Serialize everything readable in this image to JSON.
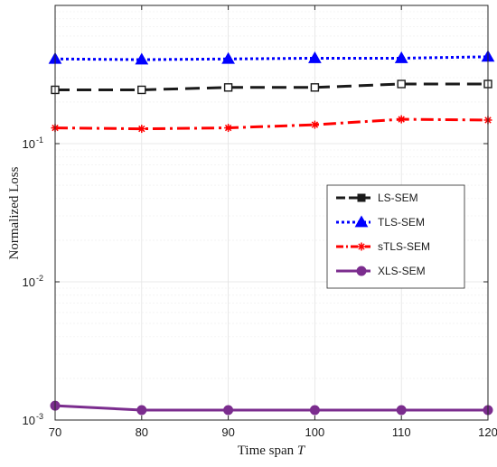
{
  "chart_data": {
    "type": "line",
    "xlabel": "Time span",
    "xlabel_var": "T",
    "ylabel": "Normalized Loss",
    "x": [
      70,
      80,
      90,
      100,
      110,
      120
    ],
    "xlim": [
      70,
      120
    ],
    "xticks": [
      70,
      80,
      90,
      100,
      110,
      120
    ],
    "yscale": "log",
    "ylim": [
      0.001,
      1
    ],
    "yticks": [
      {
        "value": 0.001,
        "base": "10",
        "exp": "-3"
      },
      {
        "value": 0.01,
        "base": "10",
        "exp": "-2"
      },
      {
        "value": 0.1,
        "base": "10",
        "exp": "-1"
      }
    ],
    "grid": true,
    "legend_position": "right",
    "series": [
      {
        "name": "LS-SEM",
        "values": [
          0.245,
          0.245,
          0.255,
          0.255,
          0.27,
          0.27
        ],
        "color": "#1a1a1a",
        "dash": "16,8",
        "marker": "square-open"
      },
      {
        "name": "TLS-SEM",
        "values": [
          0.41,
          0.405,
          0.41,
          0.415,
          0.415,
          0.425
        ],
        "color": "#0000ff",
        "dash": "3,3",
        "marker": "triangle"
      },
      {
        "name": "sTLS-SEM",
        "values": [
          0.13,
          0.128,
          0.13,
          0.137,
          0.15,
          0.148
        ],
        "color": "#ff0000",
        "dash": "14,5,3,5",
        "marker": "star"
      },
      {
        "name": "XLS-SEM",
        "values": [
          0.00127,
          0.00118,
          0.00118,
          0.00118,
          0.00118,
          0.00118
        ],
        "color": "#7b2d8e",
        "dash": "",
        "marker": "circle"
      }
    ]
  }
}
